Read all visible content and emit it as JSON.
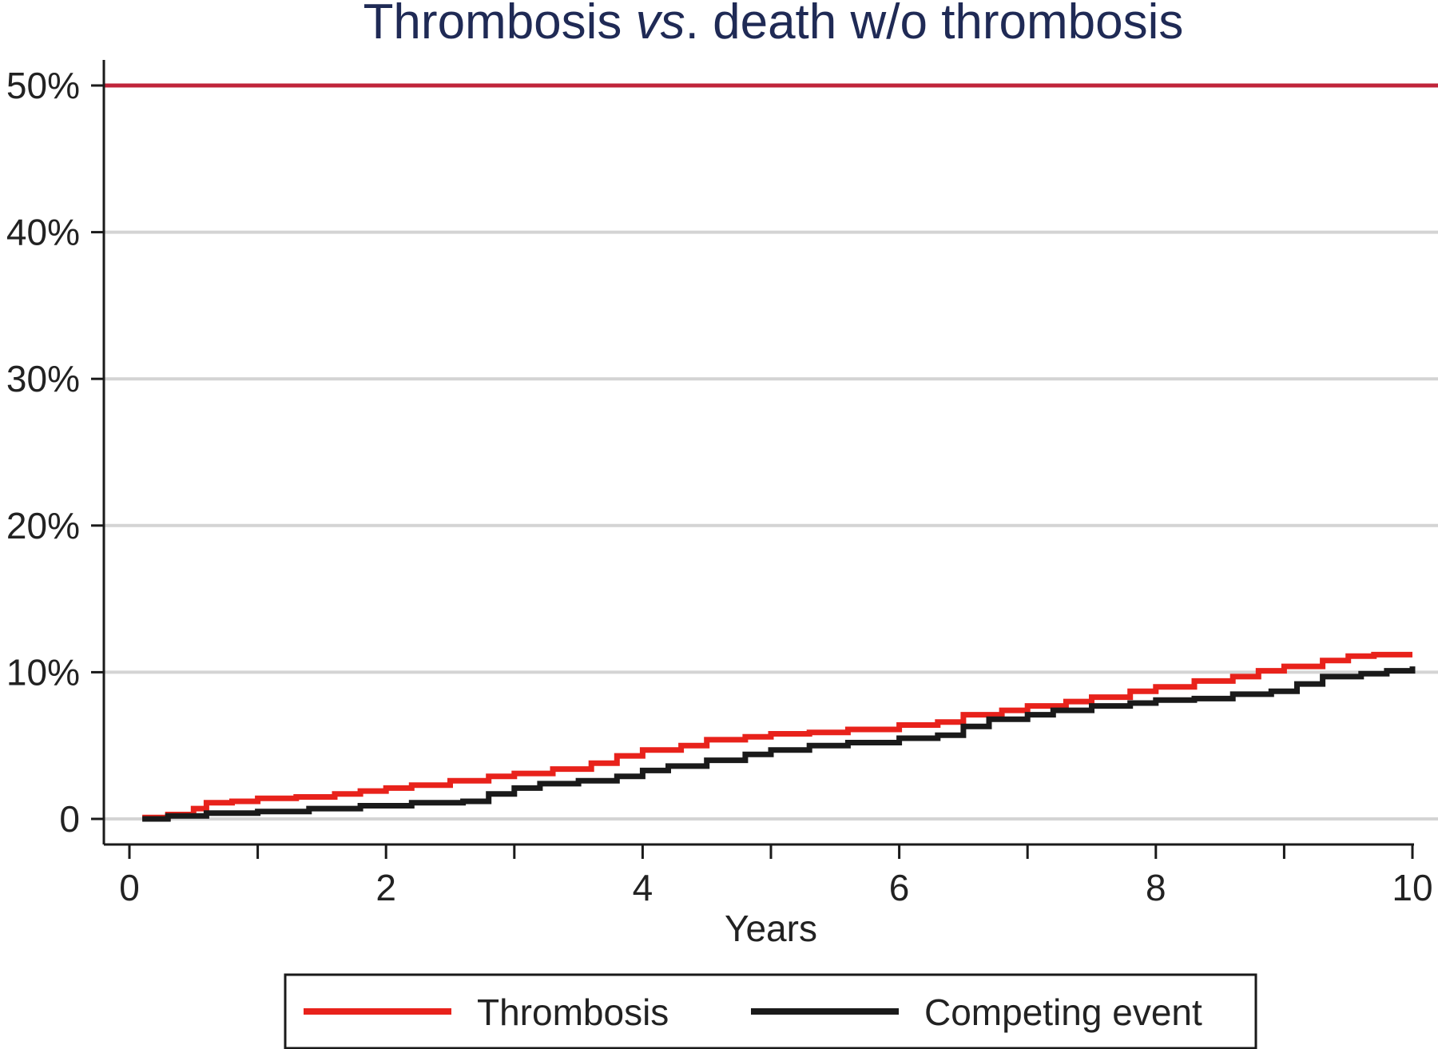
{
  "chart_data": {
    "type": "line",
    "title": {
      "prefix": "Thrombosis ",
      "italic": "vs",
      "suffix": ". death w/o thrombosis"
    },
    "xlabel": "Years",
    "ylabel": "",
    "xlim": [
      0,
      10
    ],
    "ylim": [
      0,
      0.5
    ],
    "x_ticks": [
      {
        "value": 0,
        "label": "0"
      },
      {
        "value": 2,
        "label": "2"
      },
      {
        "value": 4,
        "label": "4"
      },
      {
        "value": 6,
        "label": "6"
      },
      {
        "value": 8,
        "label": "8"
      },
      {
        "value": 10,
        "label": "10"
      }
    ],
    "y_ticks": [
      {
        "value": 0,
        "label": "0"
      },
      {
        "value": 0.1,
        "label": "10%"
      },
      {
        "value": 0.2,
        "label": "20%"
      },
      {
        "value": 0.3,
        "label": "30%"
      },
      {
        "value": 0.4,
        "label": "40%"
      },
      {
        "value": 0.5,
        "label": "50%"
      }
    ],
    "grid": true,
    "reference_line": {
      "y": 0.5,
      "color": "#c0243a"
    },
    "legend_position": "bottom",
    "series": [
      {
        "name": "Thrombosis",
        "color": "#e8221b",
        "x": [
          0.1,
          0.3,
          0.5,
          0.6,
          0.8,
          1.0,
          1.3,
          1.6,
          1.8,
          2.0,
          2.2,
          2.5,
          2.8,
          3.0,
          3.3,
          3.6,
          3.8,
          4.0,
          4.3,
          4.5,
          4.8,
          5.0,
          5.3,
          5.6,
          6.0,
          6.3,
          6.5,
          6.8,
          7.0,
          7.3,
          7.5,
          7.8,
          8.0,
          8.3,
          8.6,
          8.8,
          9.0,
          9.3,
          9.5,
          9.7,
          10.0
        ],
        "y": [
          0.001,
          0.003,
          0.007,
          0.011,
          0.012,
          0.014,
          0.015,
          0.017,
          0.019,
          0.021,
          0.023,
          0.026,
          0.029,
          0.031,
          0.034,
          0.038,
          0.043,
          0.047,
          0.05,
          0.054,
          0.056,
          0.058,
          0.059,
          0.061,
          0.064,
          0.066,
          0.071,
          0.074,
          0.077,
          0.08,
          0.083,
          0.087,
          0.09,
          0.094,
          0.097,
          0.101,
          0.104,
          0.108,
          0.111,
          0.112,
          0.112
        ]
      },
      {
        "name": "Competing event",
        "color": "#1a1a1a",
        "x": [
          0.1,
          0.3,
          0.6,
          1.0,
          1.4,
          1.8,
          2.2,
          2.6,
          2.8,
          3.0,
          3.2,
          3.5,
          3.8,
          4.0,
          4.2,
          4.5,
          4.8,
          5.0,
          5.3,
          5.6,
          6.0,
          6.3,
          6.5,
          6.7,
          7.0,
          7.2,
          7.5,
          7.8,
          8.0,
          8.3,
          8.6,
          8.9,
          9.1,
          9.3,
          9.6,
          9.8,
          10.0
        ],
        "y": [
          0.0,
          0.002,
          0.004,
          0.005,
          0.007,
          0.009,
          0.011,
          0.012,
          0.017,
          0.021,
          0.024,
          0.026,
          0.029,
          0.033,
          0.036,
          0.04,
          0.044,
          0.047,
          0.05,
          0.052,
          0.055,
          0.057,
          0.063,
          0.068,
          0.071,
          0.074,
          0.077,
          0.079,
          0.081,
          0.082,
          0.085,
          0.087,
          0.092,
          0.097,
          0.099,
          0.101,
          0.104
        ]
      }
    ]
  }
}
